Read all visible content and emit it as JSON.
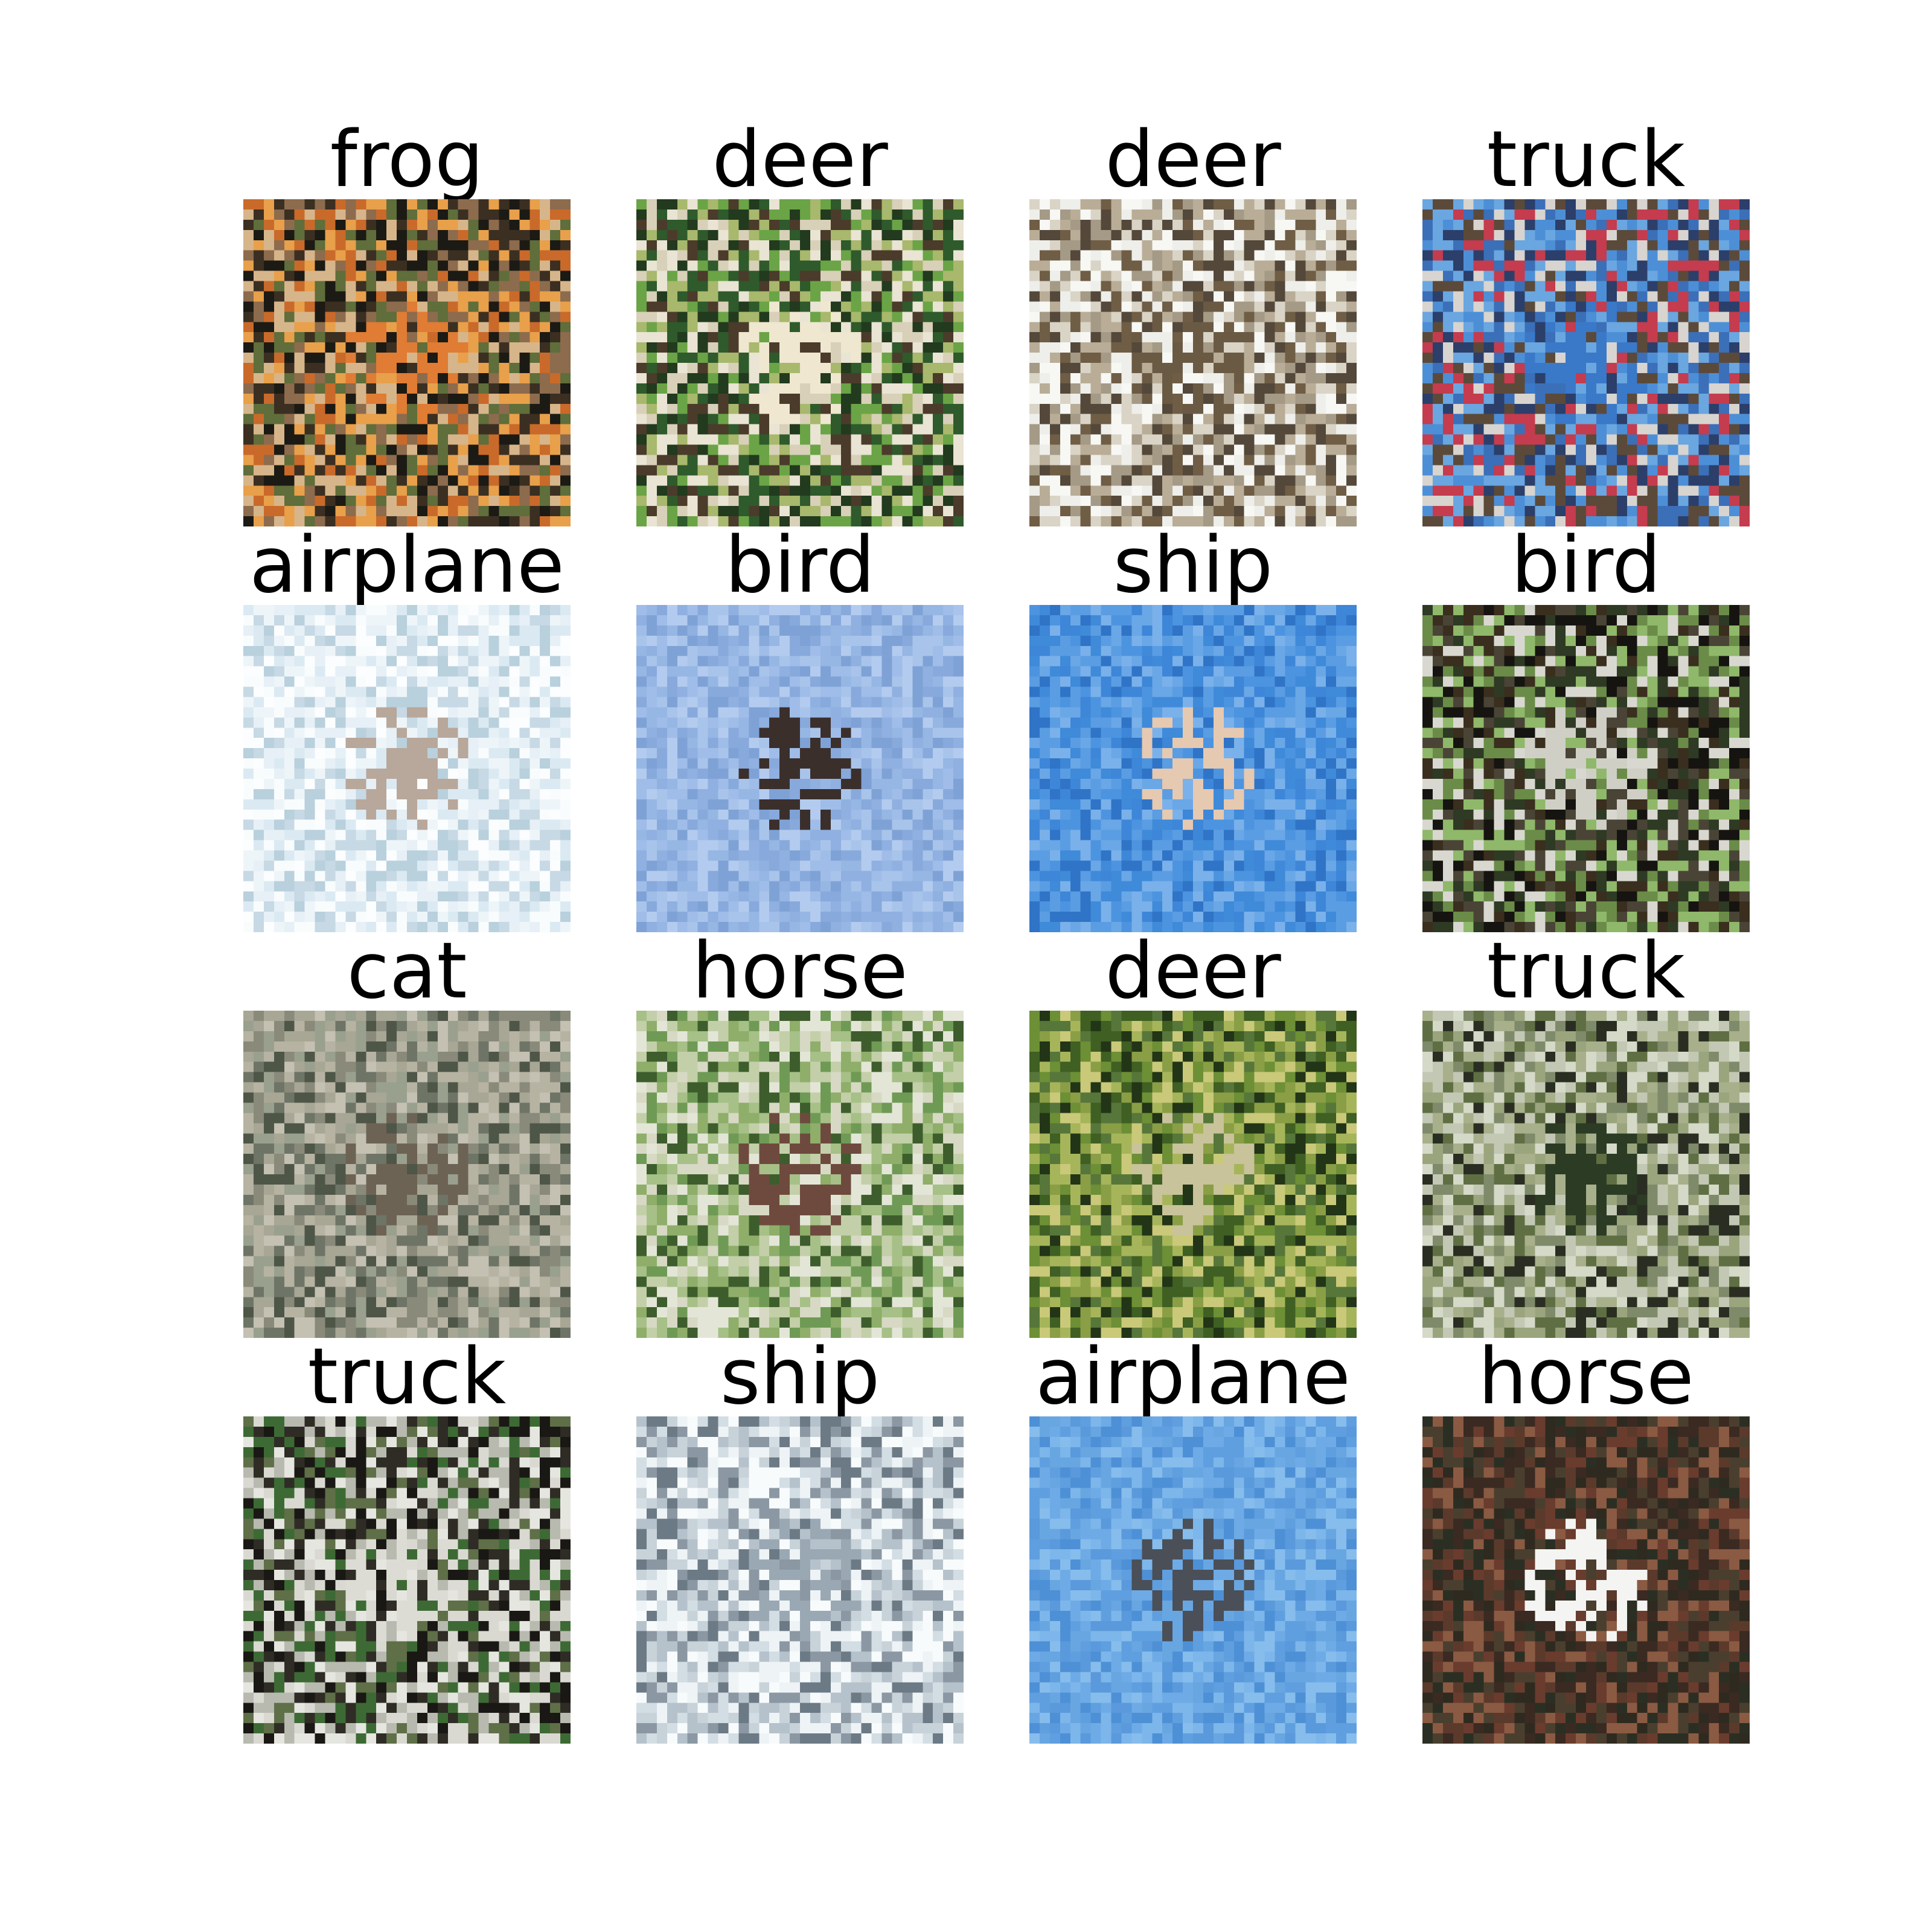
{
  "images": [
    {
      "label": "frog",
      "palette": [
        "#3b2f22",
        "#c96a2a",
        "#e8a04a",
        "#5f6e3a",
        "#1c1a14",
        "#8d6b4d",
        "#d7b58a"
      ],
      "seed": 11,
      "center": "#e07c33"
    },
    {
      "label": "deer",
      "palette": [
        "#2f5a2c",
        "#6aa446",
        "#d8d0b8",
        "#223a1e",
        "#a8b86c",
        "#e9e4d3",
        "#4b3b2a"
      ],
      "seed": 23,
      "center": "#efe7d0"
    },
    {
      "label": "deer",
      "palette": [
        "#eeeeea",
        "#d9d4c6",
        "#b9ad97",
        "#6f5d45",
        "#f7f7f4",
        "#a49a86",
        "#53483a"
      ],
      "seed": 37,
      "center": "#6a5a44"
    },
    {
      "label": "truck",
      "palette": [
        "#4d8fd6",
        "#6aa6e0",
        "#2b3f6a",
        "#c43c4e",
        "#d8d4cf",
        "#3b6fb8",
        "#5b4a3a"
      ],
      "seed": 41,
      "center": "#3a78c8"
    },
    {
      "label": "airplane",
      "palette": [
        "#eef5f9",
        "#dbeaf2",
        "#f9fcfd",
        "#c6d9e4",
        "#e6f0f6",
        "#b9d0dd",
        "#fbfdfe"
      ],
      "seed": 53,
      "center": "#b8a79b"
    },
    {
      "label": "bird",
      "palette": [
        "#8fb0e0",
        "#9fbde8",
        "#7fa2d6",
        "#a9c4ea",
        "#88a9dc",
        "#96b6e4",
        "#b3cbee"
      ],
      "seed": 61,
      "center": "#3b2f2c"
    },
    {
      "label": "ship",
      "palette": [
        "#3d86d8",
        "#4d94e0",
        "#6aa7e6",
        "#2f74c6",
        "#5a9de2",
        "#3f8ad9",
        "#7ab1ea"
      ],
      "seed": 71,
      "center": "#e6c9b1"
    },
    {
      "label": "bird",
      "palette": [
        "#161410",
        "#2e3a24",
        "#6a8c48",
        "#d8d8d0",
        "#3a2e1e",
        "#8fb86a",
        "#4a4436"
      ],
      "seed": 83,
      "center": "#cfcfc6"
    },
    {
      "label": "cat",
      "palette": [
        "#8a8a7a",
        "#a8a695",
        "#6e7566",
        "#c4c0b2",
        "#4e5648",
        "#9aa08e",
        "#b7b3a2"
      ],
      "seed": 97,
      "center": "#6d6355"
    },
    {
      "label": "horse",
      "palette": [
        "#6f9a55",
        "#a6c087",
        "#d7d9c4",
        "#3e5d2d",
        "#c3cfa8",
        "#8eae6a",
        "#e3e6d6"
      ],
      "seed": 103,
      "center": "#6e4a3e"
    },
    {
      "label": "deer",
      "palette": [
        "#3f5f23",
        "#6d8f35",
        "#a7b55a",
        "#223516",
        "#8a9e46",
        "#c9c979",
        "#57763a"
      ],
      "seed": 113,
      "center": "#c8c39a"
    },
    {
      "label": "truck",
      "palette": [
        "#7f8a6a",
        "#a7b08b",
        "#d5d9c8",
        "#2a2e22",
        "#5f6f43",
        "#c3c8b4",
        "#9aa57d"
      ],
      "seed": 127,
      "center": "#2b3b24"
    },
    {
      "label": "truck",
      "palette": [
        "#1a1814",
        "#d9d9d2",
        "#5f6f48",
        "#3d6a34",
        "#b8bab0",
        "#2f2c26",
        "#e6e6e0"
      ],
      "seed": 131,
      "center": "#dcdcd4"
    },
    {
      "label": "ship",
      "palette": [
        "#eef3f6",
        "#d3dde4",
        "#b6c2cb",
        "#f8fbfc",
        "#8b98a3",
        "#c8d2d9",
        "#6c7a86"
      ],
      "seed": 139,
      "center": "#9aa8b3"
    },
    {
      "label": "airplane",
      "palette": [
        "#5f9fe0",
        "#6eabe6",
        "#4e90d6",
        "#7db6ea",
        "#5a99db",
        "#68a6e2",
        "#86bdec"
      ],
      "seed": 149,
      "center": "#4a4f58"
    },
    {
      "label": "horse",
      "palette": [
        "#3a2a22",
        "#6a3c2e",
        "#2b2f23",
        "#8b5a43",
        "#4a3f2e",
        "#5b3a2c",
        "#2f2a20"
      ],
      "seed": 157,
      "center": "#f4f4f2"
    }
  ]
}
